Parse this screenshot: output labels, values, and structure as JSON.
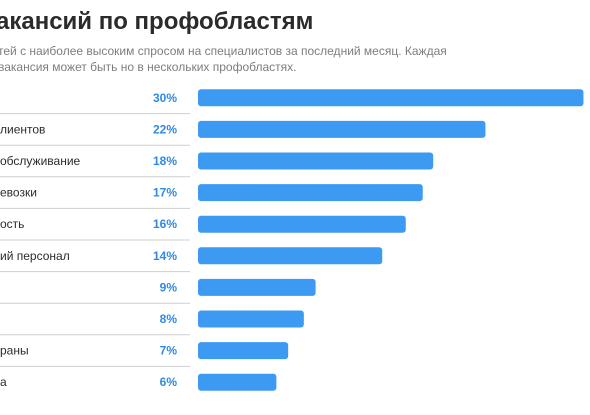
{
  "header": {
    "title": "акансий по профобластям",
    "subtitle": "тей с наиболее высоким спросом на специалистов за последний месяц. Каждая вакансия может быть но в нескольких профобластях."
  },
  "colors": {
    "bar": "#3d9af3",
    "percent_text": "#2f8ae6",
    "divider": "#cfcfcf"
  },
  "chart_data": {
    "type": "bar",
    "orientation": "horizontal",
    "title": "акансий по профобластям",
    "categories": [
      "",
      "лиентов",
      "обслуживание",
      "евозки",
      "ость",
      "ий персонал",
      "",
      "",
      "раны",
      "а"
    ],
    "value_labels": [
      "30%",
      "22%",
      "18%",
      "17%",
      "16%",
      "14%",
      "9%",
      "8%",
      "7%",
      "6%"
    ],
    "values": [
      30,
      22,
      18,
      17,
      16,
      14,
      9,
      8,
      7,
      6
    ],
    "bar_values": [
      29.5,
      22.0,
      18.0,
      17.2,
      15.9,
      14.1,
      9.0,
      8.1,
      6.9,
      6.0
    ],
    "xlim": [
      0,
      30
    ],
    "grid": false,
    "legend": "none"
  }
}
